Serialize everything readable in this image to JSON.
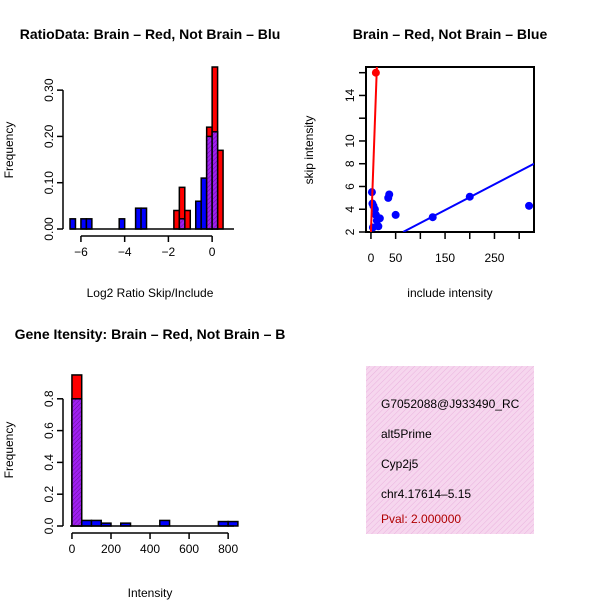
{
  "colors": {
    "red": "#ff0000",
    "blue": "#0000ff",
    "purple": "#a020f0",
    "pink_panel": "#f6d6ee",
    "hatch": "#e8a6d8"
  },
  "chart_data": [
    {
      "id": "ratio_hist",
      "type": "bar",
      "title": "RatioData: Brain – Red, Not Brain – Blu",
      "xlabel": "Log2 Ratio Skip/Include",
      "ylabel": "Frequency",
      "xlim": [
        -6.5,
        1.0
      ],
      "ylim": [
        0,
        0.35
      ],
      "xticks": [
        -6,
        -4,
        -2,
        0
      ],
      "xtick_labels": [
        "−6",
        "−4",
        "−2",
        "0"
      ],
      "yticks": [
        0.0,
        0.1,
        0.2,
        0.3
      ],
      "ytick_labels": [
        "0.00",
        "0.10",
        "0.20",
        "0.30"
      ],
      "series": [
        {
          "name": "Brain",
          "color": "red",
          "bins": [
            [
              -1.75,
              -1.5,
              0.04
            ],
            [
              -1.5,
              -1.25,
              0.09
            ],
            [
              -1.25,
              -1.0,
              0.04
            ],
            [
              -0.25,
              0.0,
              0.22
            ],
            [
              0.0,
              0.25,
              0.35
            ],
            [
              0.25,
              0.5,
              0.17
            ]
          ]
        },
        {
          "name": "Not Brain",
          "color": "blue",
          "bins": [
            [
              -6.5,
              -6.25,
              0.022
            ],
            [
              -6.0,
              -5.75,
              0.022
            ],
            [
              -5.75,
              -5.5,
              0.022
            ],
            [
              -4.25,
              -4.0,
              0.022
            ],
            [
              -3.5,
              -3.25,
              0.045
            ],
            [
              -3.25,
              -3.0,
              0.045
            ],
            [
              -1.5,
              -1.25,
              0.022
            ],
            [
              -0.75,
              -0.5,
              0.06
            ],
            [
              -0.5,
              -0.25,
              0.11
            ],
            [
              -0.25,
              0.0,
              0.2
            ],
            [
              0.0,
              0.25,
              0.21
            ]
          ]
        }
      ]
    },
    {
      "id": "scatter",
      "type": "scatter",
      "title": "Brain – Red, Not Brain – Blue",
      "xlabel": "include intensity",
      "ylabel": "skip intensity",
      "xlim": [
        -10,
        330
      ],
      "ylim": [
        2,
        16.5
      ],
      "xticks": [
        0,
        50,
        150,
        250
      ],
      "xminor": [
        100,
        200,
        300
      ],
      "yticks": [
        2,
        4,
        6,
        8,
        10,
        14
      ],
      "yminor": [
        12,
        16
      ],
      "points_not_brain": [
        [
          2,
          5.5
        ],
        [
          3,
          4.5
        ],
        [
          5,
          4.3
        ],
        [
          8,
          4.0
        ],
        [
          10,
          3.5
        ],
        [
          12,
          3.0
        ],
        [
          15,
          2.5
        ],
        [
          18,
          3.2
        ],
        [
          35,
          5.0
        ],
        [
          37,
          5.3
        ],
        [
          50,
          3.5
        ],
        [
          125,
          3.3
        ],
        [
          200,
          5.1
        ],
        [
          320,
          4.3
        ],
        [
          4,
          2.4
        ]
      ],
      "points_brain": [
        [
          10,
          16
        ]
      ],
      "fit_brain": [
        [
          0,
          2
        ],
        [
          12,
          16.5
        ]
      ],
      "fit_not_brain": [
        [
          65,
          2
        ],
        [
          330,
          8
        ]
      ]
    },
    {
      "id": "intensity_hist",
      "type": "bar",
      "title": "Gene Itensity: Brain – Red, Not Brain – B",
      "xlabel": "Intensity",
      "ylabel": "Frequency",
      "xlim": [
        -10,
        830
      ],
      "ylim": [
        0,
        1.0
      ],
      "xticks": [
        0,
        200,
        400,
        600,
        800
      ],
      "yticks": [
        0.0,
        0.2,
        0.4,
        0.6,
        0.8
      ],
      "ytick_labels": [
        "0.0",
        "0.2",
        "0.4",
        "0.6",
        "0.8"
      ],
      "series": [
        {
          "name": "Brain",
          "color": "red",
          "bins": [
            [
              0,
              50,
              0.95
            ]
          ]
        },
        {
          "name": "Not Brain",
          "color": "blue",
          "bins": [
            [
              0,
              50,
              0.8
            ],
            [
              50,
              100,
              0.035
            ],
            [
              100,
              150,
              0.035
            ],
            [
              150,
              200,
              0.018
            ],
            [
              250,
              300,
              0.018
            ],
            [
              450,
              500,
              0.035
            ],
            [
              750,
              800,
              0.028
            ],
            [
              800,
              850,
              0.028
            ]
          ]
        }
      ]
    }
  ],
  "info_panel": {
    "gene_id": "G7052088@J933490_RC",
    "event_type": "alt5Prime",
    "gene_name": "Cyp2j5",
    "location": "chr4.17614–5.15",
    "pval": "Pval: 2.000000"
  }
}
